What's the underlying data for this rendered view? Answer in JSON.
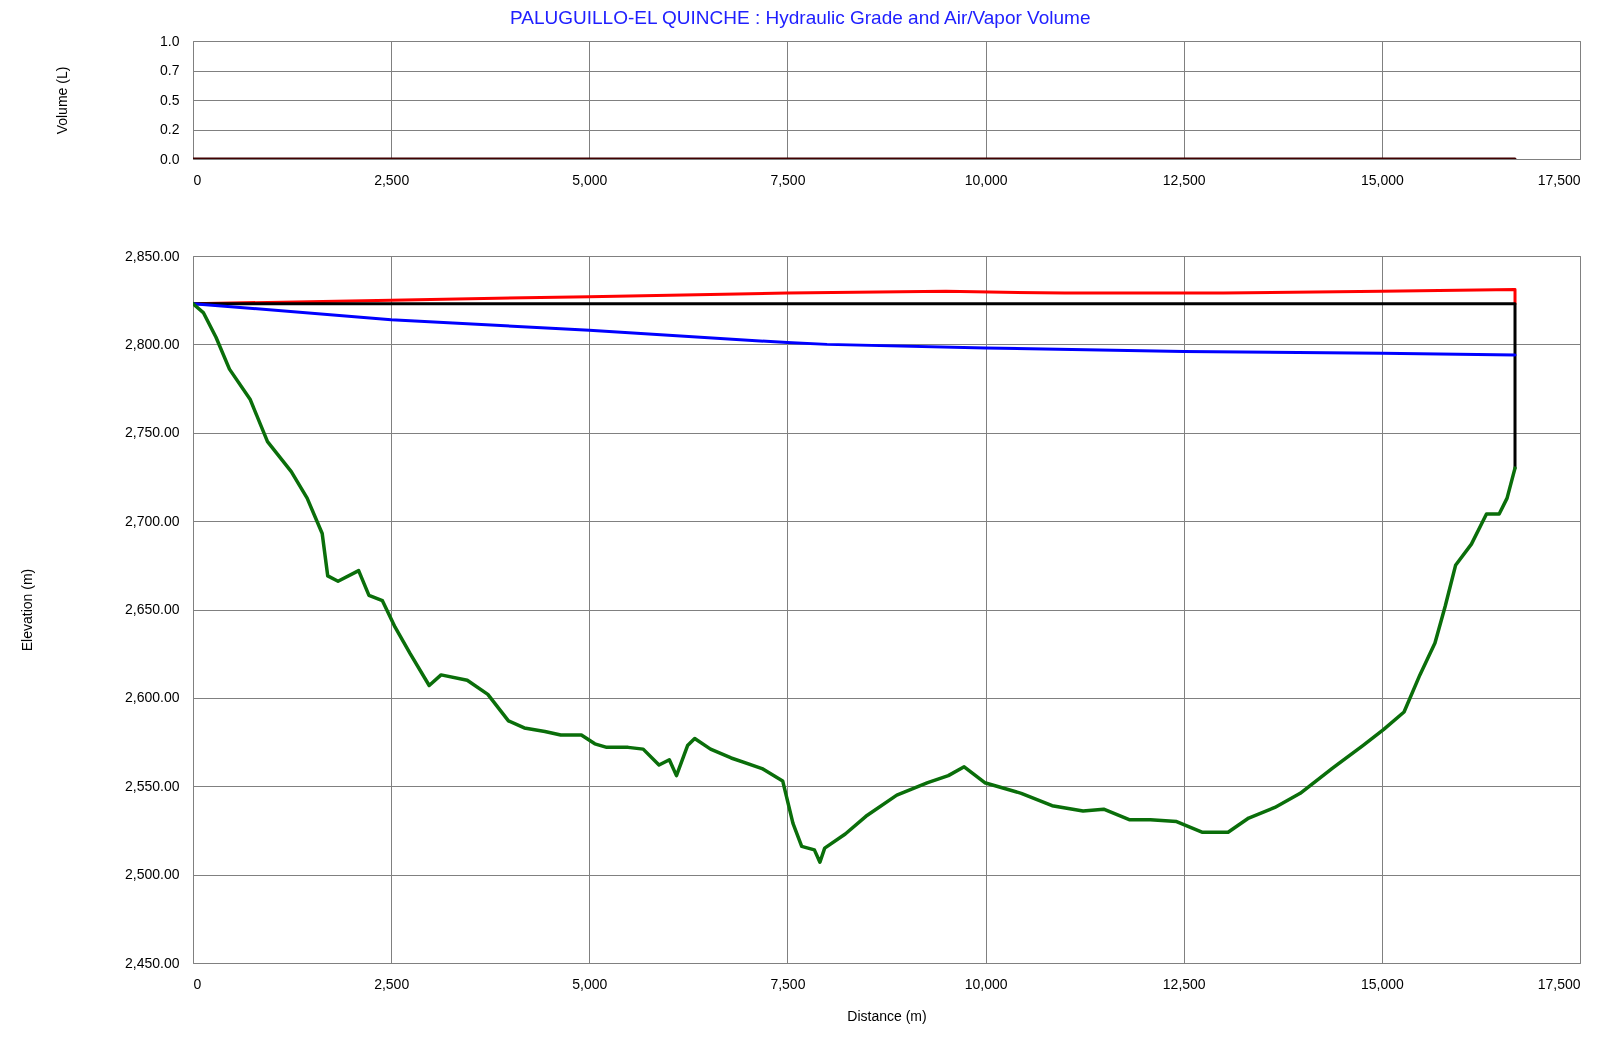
{
  "chart_data": [
    {
      "type": "line",
      "title": "PALUGUILLO-EL QUINCHE : Hydraulic Grade and Air/Vapor Volume",
      "ylabel": "Volume (L)",
      "series": [
        {
          "color": "#400000",
          "x": [
            0,
            16680
          ],
          "values": [
            0,
            0
          ]
        }
      ],
      "xlim": [
        0,
        17500
      ],
      "xticks": [
        {
          "value": 0,
          "label": "0"
        },
        {
          "value": 2500,
          "label": "2,500"
        },
        {
          "value": 5000,
          "label": "5,000"
        },
        {
          "value": 7500,
          "label": "7,500"
        },
        {
          "value": 10000,
          "label": "10,000"
        },
        {
          "value": 12500,
          "label": "12,500"
        },
        {
          "value": 15000,
          "label": "15,000"
        },
        {
          "value": 17500,
          "label": "17,500"
        }
      ],
      "ylim": [
        0,
        1
      ],
      "yticks": [
        {
          "value": 0,
          "label": "0.0"
        },
        {
          "value": 0.25,
          "label": "0.2"
        },
        {
          "value": 0.5,
          "label": "0.5"
        },
        {
          "value": 0.75,
          "label": "0.7"
        },
        {
          "value": 1,
          "label": "1.0"
        }
      ],
      "grid": true
    },
    {
      "type": "line",
      "xlabel": "Distance (m)",
      "ylabel": "Elevation (m)",
      "series": [
        {
          "color": "#ff0000",
          "x": [
            0,
            2500,
            5000,
            7500,
            9500,
            11000,
            13000,
            15000,
            16680,
            16680
          ],
          "values": [
            2823,
            2825,
            2827,
            2829,
            2830,
            2829,
            2829,
            2830,
            2831,
            2823
          ]
        },
        {
          "color": "#000000",
          "x": [
            0,
            16680,
            16680
          ],
          "values": [
            2823,
            2823,
            2730
          ]
        },
        {
          "color": "#0000ff",
          "x": [
            0,
            2500,
            5000,
            7500,
            8000,
            10000,
            12500,
            15000,
            16680
          ],
          "values": [
            2823,
            2814,
            2808,
            2801,
            2800,
            2798,
            2796,
            2795,
            2794
          ]
        },
        {
          "color": "#0a6e0a",
          "x": [
            0,
            130,
            290,
            460,
            720,
            940,
            1240,
            1440,
            1630,
            1700,
            1830,
            2090,
            2220,
            2390,
            2550,
            2740,
            2980,
            3130,
            3460,
            3720,
            3980,
            4180,
            4440,
            4640,
            4900,
            5070,
            5220,
            5490,
            5680,
            5880,
            6010,
            6100,
            6240,
            6330,
            6530,
            6790,
            7180,
            7440,
            7570,
            7680,
            7840,
            7910,
            7970,
            8230,
            8490,
            8880,
            9270,
            9530,
            9730,
            9990,
            10450,
            10840,
            11230,
            11490,
            11820,
            12080,
            12410,
            12730,
            13060,
            13320,
            13650,
            13970,
            14370,
            14760,
            15020,
            15280,
            15480,
            15670,
            15800,
            15930,
            16130,
            16320,
            16480,
            16580,
            16680
          ],
          "values": [
            2823,
            2818,
            2804,
            2786,
            2769,
            2745,
            2728,
            2713,
            2693,
            2669,
            2666,
            2672,
            2658,
            2655,
            2640,
            2625,
            2607,
            2613,
            2610,
            2602,
            2587,
            2583,
            2581,
            2579,
            2579,
            2574,
            2572,
            2572,
            2571,
            2562,
            2565,
            2556,
            2573,
            2577,
            2571,
            2566,
            2560,
            2553,
            2529,
            2516,
            2514,
            2507,
            2515,
            2523,
            2533,
            2545,
            2552,
            2556,
            2561,
            2552,
            2546,
            2539,
            2536,
            2537,
            2531,
            2531,
            2530,
            2524,
            2524,
            2532,
            2538,
            2546,
            2560,
            2573,
            2582,
            2592,
            2613,
            2631,
            2652,
            2675,
            2687,
            2704,
            2704,
            2713,
            2730
          ]
        }
      ],
      "xlim": [
        0,
        17500
      ],
      "xticks": [
        {
          "value": 0,
          "label": "0"
        },
        {
          "value": 2500,
          "label": "2,500"
        },
        {
          "value": 5000,
          "label": "5,000"
        },
        {
          "value": 7500,
          "label": "7,500"
        },
        {
          "value": 10000,
          "label": "10,000"
        },
        {
          "value": 12500,
          "label": "12,500"
        },
        {
          "value": 15000,
          "label": "15,000"
        },
        {
          "value": 17500,
          "label": "17,500"
        }
      ],
      "ylim": [
        2450,
        2850
      ],
      "yticks": [
        {
          "value": 2450,
          "label": "2,450.00"
        },
        {
          "value": 2500,
          "label": "2,500.00"
        },
        {
          "value": 2550,
          "label": "2,550.00"
        },
        {
          "value": 2600,
          "label": "2,600.00"
        },
        {
          "value": 2650,
          "label": "2,650.00"
        },
        {
          "value": 2700,
          "label": "2,700.00"
        },
        {
          "value": 2750,
          "label": "2,750.00"
        },
        {
          "value": 2800,
          "label": "2,800.00"
        },
        {
          "value": 2850,
          "label": "2,850.00"
        }
      ],
      "grid": true
    }
  ]
}
